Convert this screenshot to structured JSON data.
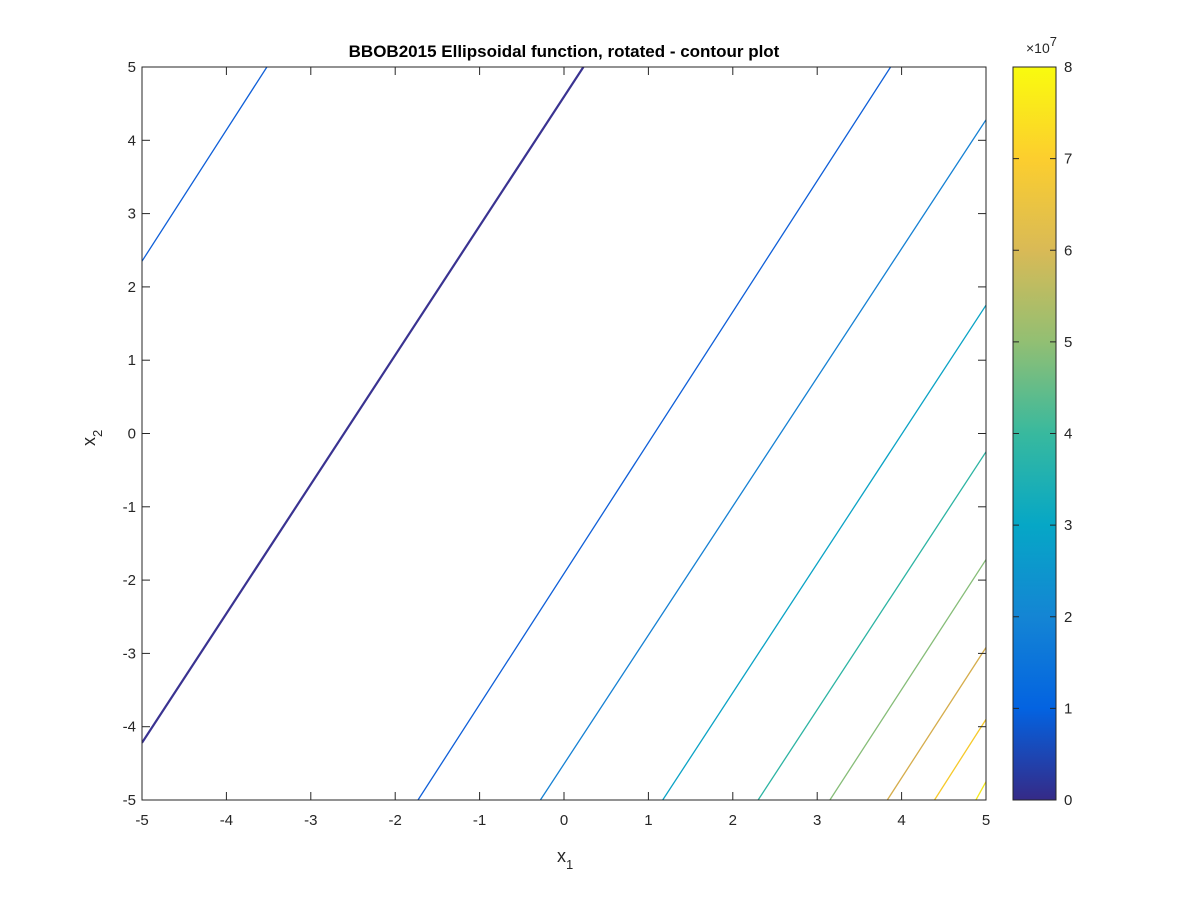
{
  "chart_data": {
    "type": "contour",
    "title": "BBOB2015 Ellipsoidal function, rotated - contour plot",
    "xlabel": {
      "base": "x",
      "sub": "1"
    },
    "ylabel": {
      "base": "x",
      "sub": "2"
    },
    "xlim": [
      -5,
      5
    ],
    "ylim": [
      -5,
      5
    ],
    "xticks": [
      "-5",
      "-4",
      "-3",
      "-2",
      "-1",
      "0",
      "1",
      "2",
      "3",
      "4",
      "5"
    ],
    "yticks": [
      "-5",
      "-4",
      "-3",
      "-2",
      "-1",
      "0",
      "1",
      "2",
      "3",
      "4",
      "5"
    ],
    "grid": false,
    "colorbar": {
      "range": [
        0,
        8
      ],
      "ticks": [
        "0",
        "1",
        "2",
        "3",
        "4",
        "5",
        "6",
        "7",
        "8"
      ],
      "exponent_base": "×10",
      "exponent": "7",
      "colormap": [
        "#352a87",
        "#0363e1",
        "#1485d4",
        "#06a7c6",
        "#38b99e",
        "#92bf73",
        "#d9ba56",
        "#fcce2e",
        "#f9fb0e"
      ]
    },
    "contour_lines": [
      {
        "level": 0.02,
        "color": "#3a3391",
        "points": [
          [
            -5,
            -4.22
          ],
          [
            0.23,
            5
          ]
        ]
      },
      {
        "level": 1.0,
        "color": "#0f5fd8",
        "points": [
          [
            -5,
            2.35
          ],
          [
            -3.52,
            5
          ]
        ]
      },
      {
        "level": 1.0,
        "color": "#0f5fd8",
        "points": [
          [
            -1.73,
            -5
          ],
          [
            3.87,
            5
          ]
        ]
      },
      {
        "level": 2.0,
        "color": "#1681d3",
        "points": [
          [
            -0.28,
            -5
          ],
          [
            5,
            4.28
          ]
        ]
      },
      {
        "level": 3.0,
        "color": "#0ba3c5",
        "points": [
          [
            1.17,
            -5
          ],
          [
            5,
            1.75
          ]
        ]
      },
      {
        "level": 4.0,
        "color": "#2db4a3",
        "points": [
          [
            2.3,
            -5
          ],
          [
            5,
            -0.25
          ]
        ]
      },
      {
        "level": 5.0,
        "color": "#86bd78",
        "points": [
          [
            3.15,
            -5
          ],
          [
            5,
            -1.72
          ]
        ]
      },
      {
        "level": 6.0,
        "color": "#d5ad4c",
        "points": [
          [
            3.83,
            -5
          ],
          [
            5,
            -2.92
          ]
        ]
      },
      {
        "level": 7.0,
        "color": "#f6c92a",
        "points": [
          [
            4.39,
            -5
          ],
          [
            5,
            -3.9
          ]
        ]
      },
      {
        "level": 8.0,
        "color": "#f4e81d",
        "points": [
          [
            4.88,
            -5
          ],
          [
            5,
            -4.75
          ]
        ]
      }
    ]
  }
}
